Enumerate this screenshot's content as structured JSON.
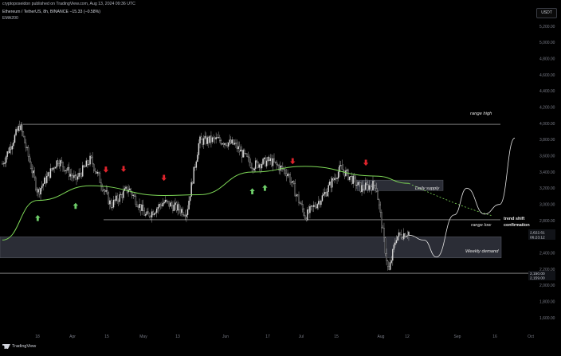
{
  "header": {
    "publisher": "cryptoposeidon published on TradingView.com, Aug 13, 2024 09:36 UTC",
    "symbol_line": "Ethereum / TetherUS, 8h, BINANCE  −15.33 (−0.58%)",
    "indicator": "EMA200"
  },
  "currency_button": "USDT",
  "brand": "TradingView",
  "price_axis": [
    "5,200.00",
    "5,000.00",
    "4,800.00",
    "4,600.00",
    "4,400.00",
    "4,200.00",
    "4,000.00",
    "3,800.00",
    "3,600.00",
    "3,400.00",
    "3,200.00",
    "3,000.00",
    "2,800.00",
    "2,600.00",
    "2,400.00",
    "2,200.00",
    "2,000.00",
    "1,800.00",
    "1,600.00"
  ],
  "price_tags": {
    "current_price": "2,622.61",
    "countdown": "06:23:12",
    "level_1": "2,150.00",
    "level_2": "2,159.00"
  },
  "time_axis": [
    "18",
    "Apr",
    "15",
    "May",
    "13",
    "Jun",
    "17",
    "Jul",
    "15",
    "Aug",
    "12",
    "Sep",
    "16",
    "Oct"
  ],
  "annotations": {
    "range_high": "range high",
    "daily_supply": "Daily supply",
    "range_low": "range low",
    "trend_shift": "trend shift",
    "confirmation": "confirmation",
    "weekly_demand": "Weekly demand"
  },
  "colors": {
    "background": "#000000",
    "candle": "#e0e0e0",
    "ema": "#7ed957",
    "up_arrow": "#6fcf6a",
    "down_arrow": "#e0242c",
    "zone": "#2b2d36"
  },
  "chart_data": {
    "type": "candlestick",
    "symbol": "ETHUSDT",
    "interval": "8h",
    "ylim": [
      1500,
      5300
    ],
    "levels": {
      "range_high": 3990,
      "range_low": 2810,
      "support": 2150
    },
    "zones": [
      {
        "label": "Daily supply",
        "low": 3170,
        "high": 3300
      },
      {
        "label": "Weekly demand",
        "low": 2340,
        "high": 2600
      }
    ],
    "close_path": [
      {
        "date": "2024-03-05",
        "price": 3500
      },
      {
        "date": "2024-03-12",
        "price": 3980
      },
      {
        "date": "2024-03-19",
        "price": 3150
      },
      {
        "date": "2024-03-27",
        "price": 3550
      },
      {
        "date": "2024-04-03",
        "price": 3300
      },
      {
        "date": "2024-04-09",
        "price": 3560
      },
      {
        "date": "2024-04-17",
        "price": 2990
      },
      {
        "date": "2024-04-24",
        "price": 3200
      },
      {
        "date": "2024-05-01",
        "price": 2850
      },
      {
        "date": "2024-05-08",
        "price": 3030
      },
      {
        "date": "2024-05-17",
        "price": 2900
      },
      {
        "date": "2024-05-22",
        "price": 3780
      },
      {
        "date": "2024-05-29",
        "price": 3800
      },
      {
        "date": "2024-06-05",
        "price": 3740
      },
      {
        "date": "2024-06-12",
        "price": 3480
      },
      {
        "date": "2024-06-19",
        "price": 3540
      },
      {
        "date": "2024-06-26",
        "price": 3390
      },
      {
        "date": "2024-07-03",
        "price": 2850
      },
      {
        "date": "2024-07-10",
        "price": 3100
      },
      {
        "date": "2024-07-17",
        "price": 3450
      },
      {
        "date": "2024-07-25",
        "price": 3200
      },
      {
        "date": "2024-07-31",
        "price": 3250
      },
      {
        "date": "2024-08-05",
        "price": 2150
      },
      {
        "date": "2024-08-08",
        "price": 2600
      },
      {
        "date": "2024-08-13",
        "price": 2660
      }
    ],
    "ema200": [
      {
        "date": "2024-03-05",
        "price": 2560
      },
      {
        "date": "2024-03-19",
        "price": 3050
      },
      {
        "date": "2024-04-09",
        "price": 3230
      },
      {
        "date": "2024-05-08",
        "price": 3110
      },
      {
        "date": "2024-05-22",
        "price": 3120
      },
      {
        "date": "2024-06-12",
        "price": 3400
      },
      {
        "date": "2024-07-03",
        "price": 3470
      },
      {
        "date": "2024-07-31",
        "price": 3350
      },
      {
        "date": "2024-08-13",
        "price": 3260
      }
    ],
    "projection": [
      {
        "date": "2024-08-13",
        "price": 2620
      },
      {
        "date": "2024-08-19",
        "price": 2560
      },
      {
        "date": "2024-08-24",
        "price": 2350
      },
      {
        "date": "2024-08-31",
        "price": 2870
      },
      {
        "date": "2024-09-05",
        "price": 3200
      },
      {
        "date": "2024-09-12",
        "price": 2880
      },
      {
        "date": "2024-09-18",
        "price": 3000
      },
      {
        "date": "2024-09-24",
        "price": 3820
      }
    ],
    "up_arrows": [
      "2024-03-19",
      "2024-04-03",
      "2024-06-12",
      "2024-06-17"
    ],
    "down_arrows": [
      "2024-04-15",
      "2024-04-22",
      "2024-05-08",
      "2024-06-28",
      "2024-07-27"
    ]
  }
}
